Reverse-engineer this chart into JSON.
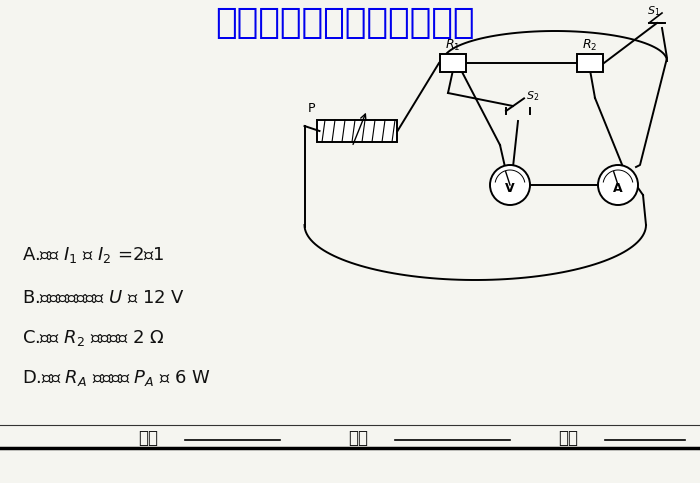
{
  "background_color": "#f5f5f0",
  "title_text": "微信公众号关注：题找答案",
  "title_color": "#0000ee",
  "title_fontsize": 26,
  "option_A": "A.电流 $I_1$ ： $I_2$ =2：1",
  "option_B": "B.电源两端的电压 $U$ 为 12 V",
  "option_C": "C.电阵 $R_2$ 的阻值为 2 Ω",
  "option_D": "D.电阵 $R_A$ 的电功率 $P_A$ 为 6 W",
  "footer_label1": "班级",
  "footer_label2": "姓名",
  "footer_label3": "分数",
  "text_color": "#111111",
  "option_fontsize": 13,
  "footer_fontsize": 12
}
